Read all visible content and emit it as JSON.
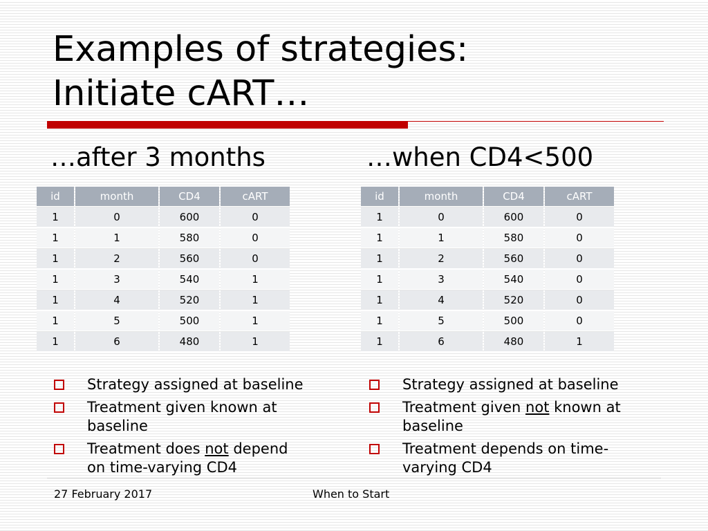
{
  "slide": {
    "title_line1": "Examples of strategies:",
    "title_line2": "Initiate cART…",
    "accent_color": "#c00000"
  },
  "left": {
    "subheading": "…after 3 months",
    "table": {
      "headers": [
        "id",
        "month",
        "CD4",
        "cART"
      ],
      "rows": [
        [
          "1",
          "0",
          "600",
          "0"
        ],
        [
          "1",
          "1",
          "580",
          "0"
        ],
        [
          "1",
          "2",
          "560",
          "0"
        ],
        [
          "1",
          "3",
          "540",
          "1"
        ],
        [
          "1",
          "4",
          "520",
          "1"
        ],
        [
          "1",
          "5",
          "500",
          "1"
        ],
        [
          "1",
          "6",
          "480",
          "1"
        ]
      ]
    },
    "bullets": [
      {
        "pre": "Strategy assigned at baseline",
        "u": "",
        "post": ""
      },
      {
        "pre": "Treatment given known at baseline",
        "u": "",
        "post": ""
      },
      {
        "pre": "Treatment does ",
        "u": "not",
        "post": " depend on time-varying CD4"
      }
    ]
  },
  "right": {
    "subheading": "…when CD4<500",
    "table": {
      "headers": [
        "id",
        "month",
        "CD4",
        "cART"
      ],
      "rows": [
        [
          "1",
          "0",
          "600",
          "0"
        ],
        [
          "1",
          "1",
          "580",
          "0"
        ],
        [
          "1",
          "2",
          "560",
          "0"
        ],
        [
          "1",
          "3",
          "540",
          "0"
        ],
        [
          "1",
          "4",
          "520",
          "0"
        ],
        [
          "1",
          "5",
          "500",
          "0"
        ],
        [
          "1",
          "6",
          "480",
          "1"
        ]
      ]
    },
    "bullets": [
      {
        "pre": "Strategy assigned at baseline",
        "u": "",
        "post": ""
      },
      {
        "pre": "Treatment given ",
        "u": "not",
        "post": " known at baseline"
      },
      {
        "pre": "Treatment depends on time-varying CD4",
        "u": "",
        "post": ""
      }
    ]
  },
  "footer": {
    "date": "27 February 2017",
    "center": "When to Start"
  },
  "icons": {
    "bullet": "hollow-square-icon"
  }
}
